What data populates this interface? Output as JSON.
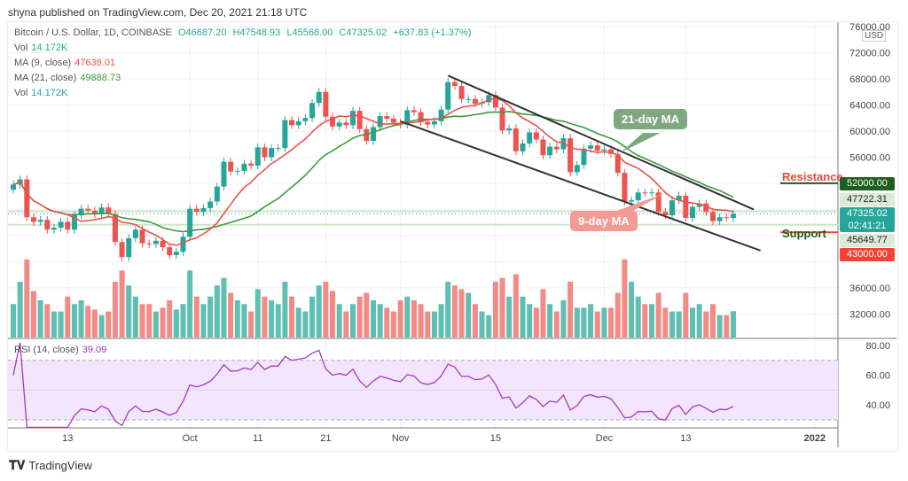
{
  "header": {
    "published": "shyna published on TradingView.com, Dec 20, 2021 21:18 UTC"
  },
  "legend": {
    "symbol": "Bitcoin / U.S. Dollar, 1D, COINBASE",
    "open": "O46687.20",
    "high": "H47548.93",
    "low": "L45568.00",
    "close": "C47325.02",
    "change": "+637.83 (+1.37%)",
    "vol_label": "Vol",
    "vol_value": "14.172K",
    "ma9_label": "MA (9, close)",
    "ma9_value": "47638.01",
    "ma21_label": "MA (21, close)",
    "ma21_value": "49888.73",
    "vol2_label": "Vol",
    "vol2_value": "14.172K",
    "rsi_label": "RSI (14, close)",
    "rsi_value": "39.09"
  },
  "price_axis": {
    "currency": "USD",
    "ticks": [
      "76000.00",
      "72000.00",
      "68000.00",
      "64000.00",
      "60000.00",
      "56000.00",
      "36000.00",
      "32000.00"
    ],
    "tags": {
      "resistance": "52000.00",
      "ma21": "47722.31",
      "last": "47325.02",
      "countdown": "02:41:21",
      "support_ma": "45649.77",
      "support": "43000.00"
    }
  },
  "rsi_axis": {
    "ticks": [
      "80.00",
      "60.00",
      "40.00"
    ]
  },
  "annotations": {
    "resistance": "Resistance",
    "support": "Support",
    "ma21": "21-day MA",
    "ma9": "9-day MA"
  },
  "footer": {
    "brand": "TradingView"
  },
  "colors": {
    "up": "#26a69a",
    "down": "#ef5350",
    "vol_up": "#5fbfb2",
    "vol_down": "#f38a86",
    "ma9": "#f0504a",
    "ma21": "#3e9a3e",
    "rsi": "#a33cc2",
    "resistance": "#1e5e1e",
    "support": "#f44336"
  },
  "chart_data": {
    "type": "candlestick",
    "start_date": "2021-09-05",
    "x_ticks": [
      {
        "label": "13",
        "date": "2021-09-13"
      },
      {
        "label": "Oct",
        "date": "2021-10-01"
      },
      {
        "label": "11",
        "date": "2021-10-11"
      },
      {
        "label": "21",
        "date": "2021-10-21"
      },
      {
        "label": "Nov",
        "date": "2021-11-01"
      },
      {
        "label": "15",
        "date": "2021-11-15"
      },
      {
        "label": "Dec",
        "date": "2021-12-01"
      },
      {
        "label": "13",
        "date": "2021-12-13"
      },
      {
        "label": "2022",
        "date": "2022-01-01"
      }
    ],
    "close": [
      51800,
      52600,
      46800,
      46100,
      46400,
      44900,
      45200,
      46100,
      44900,
      47100,
      48100,
      47800,
      47300,
      48300,
      47300,
      43000,
      40700,
      43600,
      44900,
      42800,
      42700,
      43200,
      42200,
      41000,
      41500,
      43800,
      48100,
      47600,
      48200,
      49200,
      51500,
      55300,
      53800,
      53900,
      55000,
      54700,
      57500,
      56000,
      57400,
      57400,
      61700,
      60900,
      61500,
      62000,
      64300,
      66000,
      62200,
      60700,
      61300,
      60900,
      63100,
      60300,
      58500,
      60600,
      62300,
      61900,
      61300,
      61000,
      63200,
      62900,
      61400,
      61000,
      61500,
      63300,
      67500,
      66900,
      64900,
      64900,
      64200,
      64400,
      65500,
      63600,
      60100,
      60400,
      56900,
      58100,
      59800,
      58700,
      56300,
      57600,
      57200,
      58900,
      53700,
      54800,
      57300,
      57800,
      57000,
      57200,
      56500,
      53600,
      49200,
      49400,
      50600,
      50500,
      50600,
      47600,
      47100,
      49400,
      50100,
      46700,
      48400,
      48900,
      47600,
      46200,
      46800,
      46687,
      47325
    ],
    "volume_k": [
      18,
      30,
      42,
      25,
      20,
      18,
      14,
      14,
      22,
      18,
      20,
      17,
      15,
      12,
      14,
      30,
      36,
      28,
      22,
      18,
      18,
      14,
      16,
      20,
      15,
      18,
      36,
      22,
      18,
      22,
      28,
      32,
      24,
      20,
      18,
      14,
      26,
      22,
      20,
      18,
      30,
      22,
      16,
      14,
      22,
      28,
      30,
      25,
      18,
      14,
      18,
      22,
      24,
      20,
      18,
      16,
      14,
      20,
      22,
      20,
      18,
      14,
      14,
      18,
      30,
      28,
      26,
      24,
      18,
      14,
      12,
      30,
      32,
      22,
      34,
      22,
      18,
      16,
      26,
      18,
      14,
      20,
      30,
      16,
      16,
      18,
      14,
      16,
      16,
      24,
      42,
      30,
      22,
      18,
      18,
      24,
      16,
      14,
      14,
      24,
      16,
      18,
      14,
      18,
      12,
      12,
      14.172
    ],
    "ma9_last": 47638.01,
    "ma21_last": 49888.73,
    "rsi_last": 39.09,
    "trendlines": [
      {
        "from": [
          "2021-11-08",
          68500
        ],
        "to": [
          "2021-12-23",
          48000
        ]
      },
      {
        "from": [
          "2021-11-01",
          61500
        ],
        "to": [
          "2021-12-24",
          41700
        ]
      }
    ],
    "levels": {
      "resistance": 52000,
      "support": 43000,
      "lines": [
        47722.31,
        45649.77
      ]
    },
    "y_range": [
      28000,
      77000
    ],
    "rsi_bands": [
      30,
      70
    ]
  }
}
